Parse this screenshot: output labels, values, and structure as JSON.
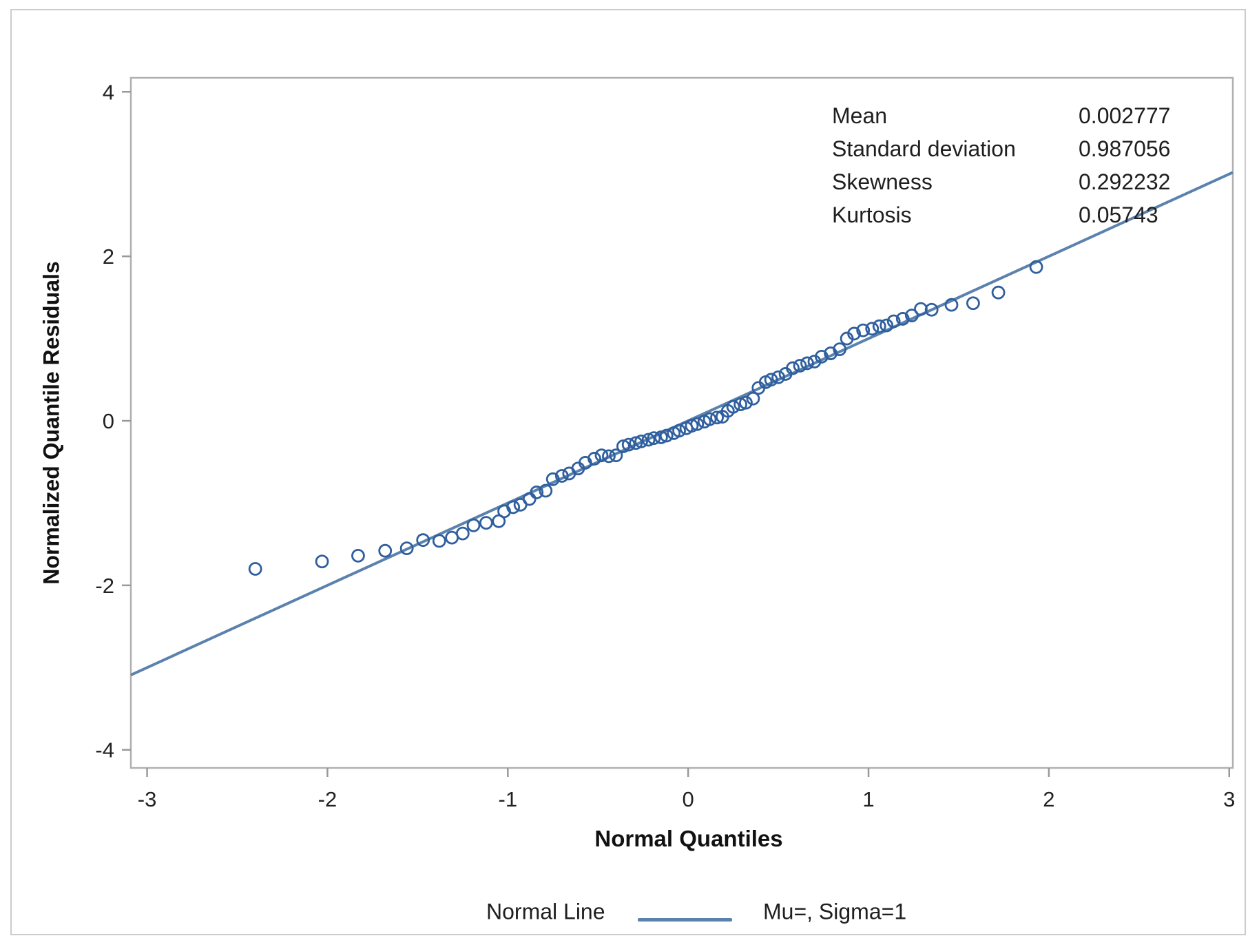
{
  "colors": {
    "marker": "#2f5f9e",
    "normal_line": "#5b81ad",
    "plot_border": "#b0b0b0",
    "tick": "#999999",
    "tick_label": "#222222",
    "outer_frame": "#cccccc"
  },
  "chart_data": {
    "type": "scatter",
    "title": "",
    "xlabel": "Normal Quantiles",
    "ylabel": "Normalized Quantile Residuals",
    "xlim": [
      -3.09,
      3.02
    ],
    "ylim": [
      -4.22,
      4.17
    ],
    "x_ticks": [
      -3,
      -2,
      -1,
      0,
      1,
      2,
      3
    ],
    "y_ticks": [
      -4,
      -2,
      0,
      2,
      4
    ],
    "grid": false,
    "legend_position": "bottom",
    "legend": {
      "name": "Normal Line",
      "value": "Mu=, Sigma=1"
    },
    "annotations": [
      {
        "label": "Mean",
        "value": "0.002777"
      },
      {
        "label": "Standard deviation",
        "value": "0.987056"
      },
      {
        "label": "Skewness",
        "value": "0.292232"
      },
      {
        "label": "Kurtosis",
        "value": "0.05743"
      }
    ],
    "series": [
      {
        "name": "Normalized quantile residuals",
        "type": "scatter",
        "marker": "open-circle",
        "color": "#2f5f9e",
        "points": [
          [
            -2.4,
            -1.8
          ],
          [
            -2.03,
            -1.71
          ],
          [
            -1.83,
            -1.64
          ],
          [
            -1.68,
            -1.58
          ],
          [
            -1.56,
            -1.55
          ],
          [
            -1.47,
            -1.45
          ],
          [
            -1.38,
            -1.46
          ],
          [
            -1.31,
            -1.42
          ],
          [
            -1.25,
            -1.37
          ],
          [
            -1.19,
            -1.27
          ],
          [
            -1.12,
            -1.24
          ],
          [
            -1.05,
            -1.22
          ],
          [
            -1.02,
            -1.1
          ],
          [
            -0.97,
            -1.05
          ],
          [
            -0.93,
            -1.02
          ],
          [
            -0.88,
            -0.95
          ],
          [
            -0.84,
            -0.87
          ],
          [
            -0.79,
            -0.85
          ],
          [
            -0.75,
            -0.71
          ],
          [
            -0.7,
            -0.67
          ],
          [
            -0.66,
            -0.64
          ],
          [
            -0.61,
            -0.58
          ],
          [
            -0.57,
            -0.51
          ],
          [
            -0.52,
            -0.46
          ],
          [
            -0.48,
            -0.42
          ],
          [
            -0.44,
            -0.43
          ],
          [
            -0.4,
            -0.42
          ],
          [
            -0.36,
            -0.31
          ],
          [
            -0.33,
            -0.29
          ],
          [
            -0.29,
            -0.27
          ],
          [
            -0.26,
            -0.25
          ],
          [
            -0.22,
            -0.23
          ],
          [
            -0.19,
            -0.21
          ],
          [
            -0.15,
            -0.2
          ],
          [
            -0.12,
            -0.18
          ],
          [
            -0.08,
            -0.15
          ],
          [
            -0.05,
            -0.12
          ],
          [
            -0.01,
            -0.09
          ],
          [
            0.02,
            -0.06
          ],
          [
            0.05,
            -0.04
          ],
          [
            0.09,
            -0.01
          ],
          [
            0.12,
            0.02
          ],
          [
            0.16,
            0.04
          ],
          [
            0.19,
            0.05
          ],
          [
            0.22,
            0.12
          ],
          [
            0.25,
            0.17
          ],
          [
            0.29,
            0.2
          ],
          [
            0.32,
            0.22
          ],
          [
            0.36,
            0.27
          ],
          [
            0.39,
            0.4
          ],
          [
            0.43,
            0.47
          ],
          [
            0.46,
            0.5
          ],
          [
            0.5,
            0.53
          ],
          [
            0.54,
            0.57
          ],
          [
            0.58,
            0.64
          ],
          [
            0.62,
            0.67
          ],
          [
            0.66,
            0.7
          ],
          [
            0.7,
            0.72
          ],
          [
            0.74,
            0.78
          ],
          [
            0.79,
            0.82
          ],
          [
            0.84,
            0.87
          ],
          [
            0.88,
            1.0
          ],
          [
            0.92,
            1.06
          ],
          [
            0.97,
            1.1
          ],
          [
            1.02,
            1.12
          ],
          [
            1.06,
            1.15
          ],
          [
            1.1,
            1.16
          ],
          [
            1.14,
            1.21
          ],
          [
            1.19,
            1.24
          ],
          [
            1.24,
            1.28
          ],
          [
            1.29,
            1.36
          ],
          [
            1.35,
            1.35
          ],
          [
            1.46,
            1.41
          ],
          [
            1.58,
            1.43
          ],
          [
            1.72,
            1.56
          ],
          [
            1.93,
            1.87
          ]
        ]
      },
      {
        "name": "Normal Line",
        "type": "line",
        "color": "#5b81ad",
        "label": "Mu=, Sigma=1",
        "x": [
          -3.09,
          3.02
        ],
        "y": [
          -3.09,
          3.02
        ]
      }
    ]
  }
}
